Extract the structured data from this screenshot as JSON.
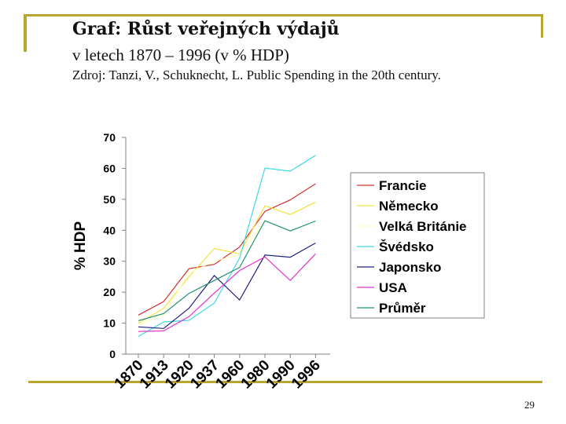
{
  "slide": {
    "title": "Graf: Růst veřejných výdajů",
    "subtitle": "v letech 1870 – 1996 (v % HDP)",
    "source": "Zdroj: Tanzi, V., Schuknecht, L. Public Spending in the 20th century.",
    "page_number": "29"
  },
  "colors": {
    "frame": "#b8a62e"
  },
  "chart_data": {
    "type": "line",
    "title": "",
    "xlabel": "",
    "ylabel": "% HDP",
    "categories": [
      "1870",
      "1913",
      "1920",
      "1937",
      "1960",
      "1980",
      "1990",
      "1996"
    ],
    "ylim": [
      0,
      70
    ],
    "yticks": [
      0,
      10,
      20,
      30,
      40,
      50,
      60,
      70
    ],
    "grid": false,
    "legend_position": "right",
    "series": [
      {
        "name": "Francie",
        "color": "#d03030",
        "values": [
          12.6,
          17.0,
          27.6,
          29.0,
          34.6,
          46.1,
          49.8,
          55.0
        ]
      },
      {
        "name": "Německo",
        "color": "#f0e040",
        "values": [
          10.0,
          14.8,
          25.0,
          34.1,
          32.4,
          47.9,
          45.1,
          49.1
        ]
      },
      {
        "name": "Velká Británie",
        "color": "#ffffc0",
        "values": [
          9.4,
          12.7,
          26.2,
          30.0,
          32.2,
          43.0,
          39.9,
          43.0
        ]
      },
      {
        "name": "Švédsko",
        "color": "#40d8e8",
        "values": [
          5.7,
          10.4,
          10.9,
          16.5,
          31.0,
          60.1,
          59.1,
          64.2
        ]
      },
      {
        "name": "Japonsko",
        "color": "#202080",
        "values": [
          8.8,
          8.3,
          14.8,
          25.4,
          17.5,
          32.0,
          31.3,
          35.9
        ]
      },
      {
        "name": "USA",
        "color": "#e030d0",
        "values": [
          7.3,
          7.5,
          12.1,
          19.7,
          27.0,
          31.4,
          23.8,
          32.4
        ]
      },
      {
        "name": "Průměr",
        "color": "#209070",
        "values": [
          10.8,
          13.1,
          19.6,
          23.8,
          28.0,
          43.1,
          39.8,
          43.0
        ]
      }
    ]
  }
}
